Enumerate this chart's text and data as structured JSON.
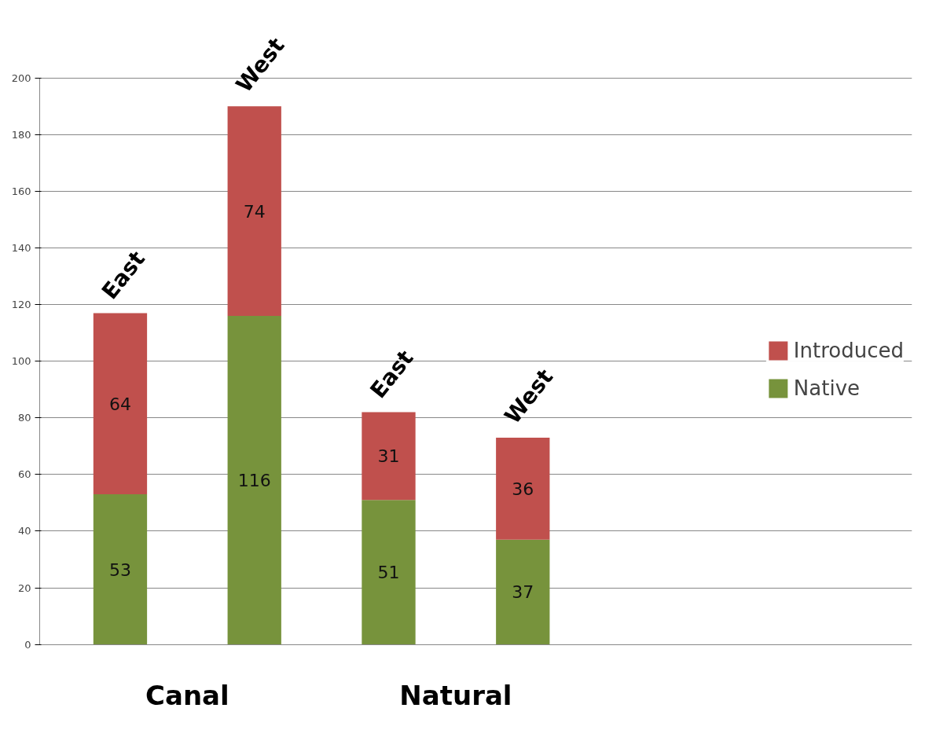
{
  "chart_data": {
    "type": "bar",
    "stacked": true,
    "categories": [
      "East",
      "West",
      "East",
      "West"
    ],
    "series": [
      {
        "name": "Native",
        "color": "#77933c",
        "values": [
          53,
          116,
          51,
          37
        ]
      },
      {
        "name": "Introduced",
        "color": "#c0504d",
        "values": [
          64,
          74,
          31,
          36
        ]
      }
    ],
    "ylim": [
      0,
      200
    ],
    "yticks": [
      0,
      20,
      40,
      60,
      80,
      100,
      120,
      140,
      160,
      180,
      200
    ],
    "grid": "y",
    "legend": "right",
    "data_labels": true,
    "annotations": [
      "Canal",
      "Natural"
    ]
  }
}
